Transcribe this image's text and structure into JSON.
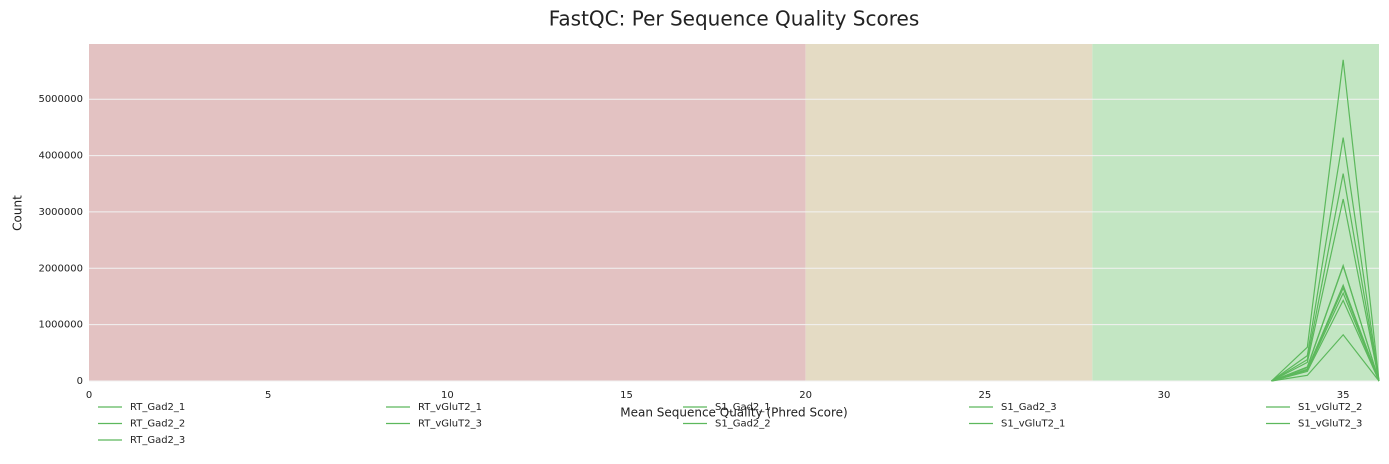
{
  "chart_data": {
    "type": "line",
    "title": "FastQC: Per Sequence Quality Scores",
    "x_label": "Mean Sequence Quality (Phred Score)",
    "y_label": "Count",
    "xlim": [
      0,
      36
    ],
    "xticks": [
      0,
      5,
      10,
      15,
      20,
      25,
      30,
      35
    ],
    "ylim": [
      0,
      5980000
    ],
    "yticks": [
      0,
      1000000,
      2000000,
      3000000,
      4000000,
      5000000
    ],
    "grid": true,
    "bands": [
      {
        "from": 0,
        "to": 20,
        "color": "#e3c2c2"
      },
      {
        "from": 20,
        "to": 28,
        "color": "#e4dbc4"
      },
      {
        "from": 28,
        "to": 36,
        "color": "#c3e6c3"
      }
    ],
    "x": [
      33,
      34,
      35,
      36
    ],
    "series": [
      {
        "name": "RT_Gad2_1",
        "color": "#5cb85c",
        "values": [
          0,
          600000,
          5700000,
          0
        ]
      },
      {
        "name": "RT_Gad2_2",
        "color": "#5cb85c",
        "values": [
          0,
          450000,
          4320000,
          0
        ]
      },
      {
        "name": "RT_Gad2_3",
        "color": "#5cb85c",
        "values": [
          0,
          380000,
          3680000,
          0
        ]
      },
      {
        "name": "RT_vGluT2_1",
        "color": "#5cb85c",
        "values": [
          0,
          330000,
          3230000,
          0
        ]
      },
      {
        "name": "RT_vGluT2_3",
        "color": "#5cb85c",
        "values": [
          0,
          250000,
          2050000,
          0
        ]
      },
      {
        "name": "S1_Gad2_1",
        "color": "#5cb85c",
        "values": [
          0,
          240000,
          2040000,
          0
        ]
      },
      {
        "name": "S1_Gad2_2",
        "color": "#5cb85c",
        "values": [
          0,
          210000,
          1700000,
          0
        ]
      },
      {
        "name": "S1_Gad2_3",
        "color": "#5cb85c",
        "values": [
          0,
          200000,
          1650000,
          0
        ]
      },
      {
        "name": "S1_vGluT2_1",
        "color": "#5cb85c",
        "values": [
          0,
          190000,
          1560000,
          0
        ]
      },
      {
        "name": "S1_vGluT2_2",
        "color": "#5cb85c",
        "values": [
          0,
          170000,
          1430000,
          0
        ]
      },
      {
        "name": "S1_vGluT2_3",
        "color": "#5cb85c",
        "values": [
          0,
          100000,
          820000,
          0
        ]
      }
    ]
  }
}
